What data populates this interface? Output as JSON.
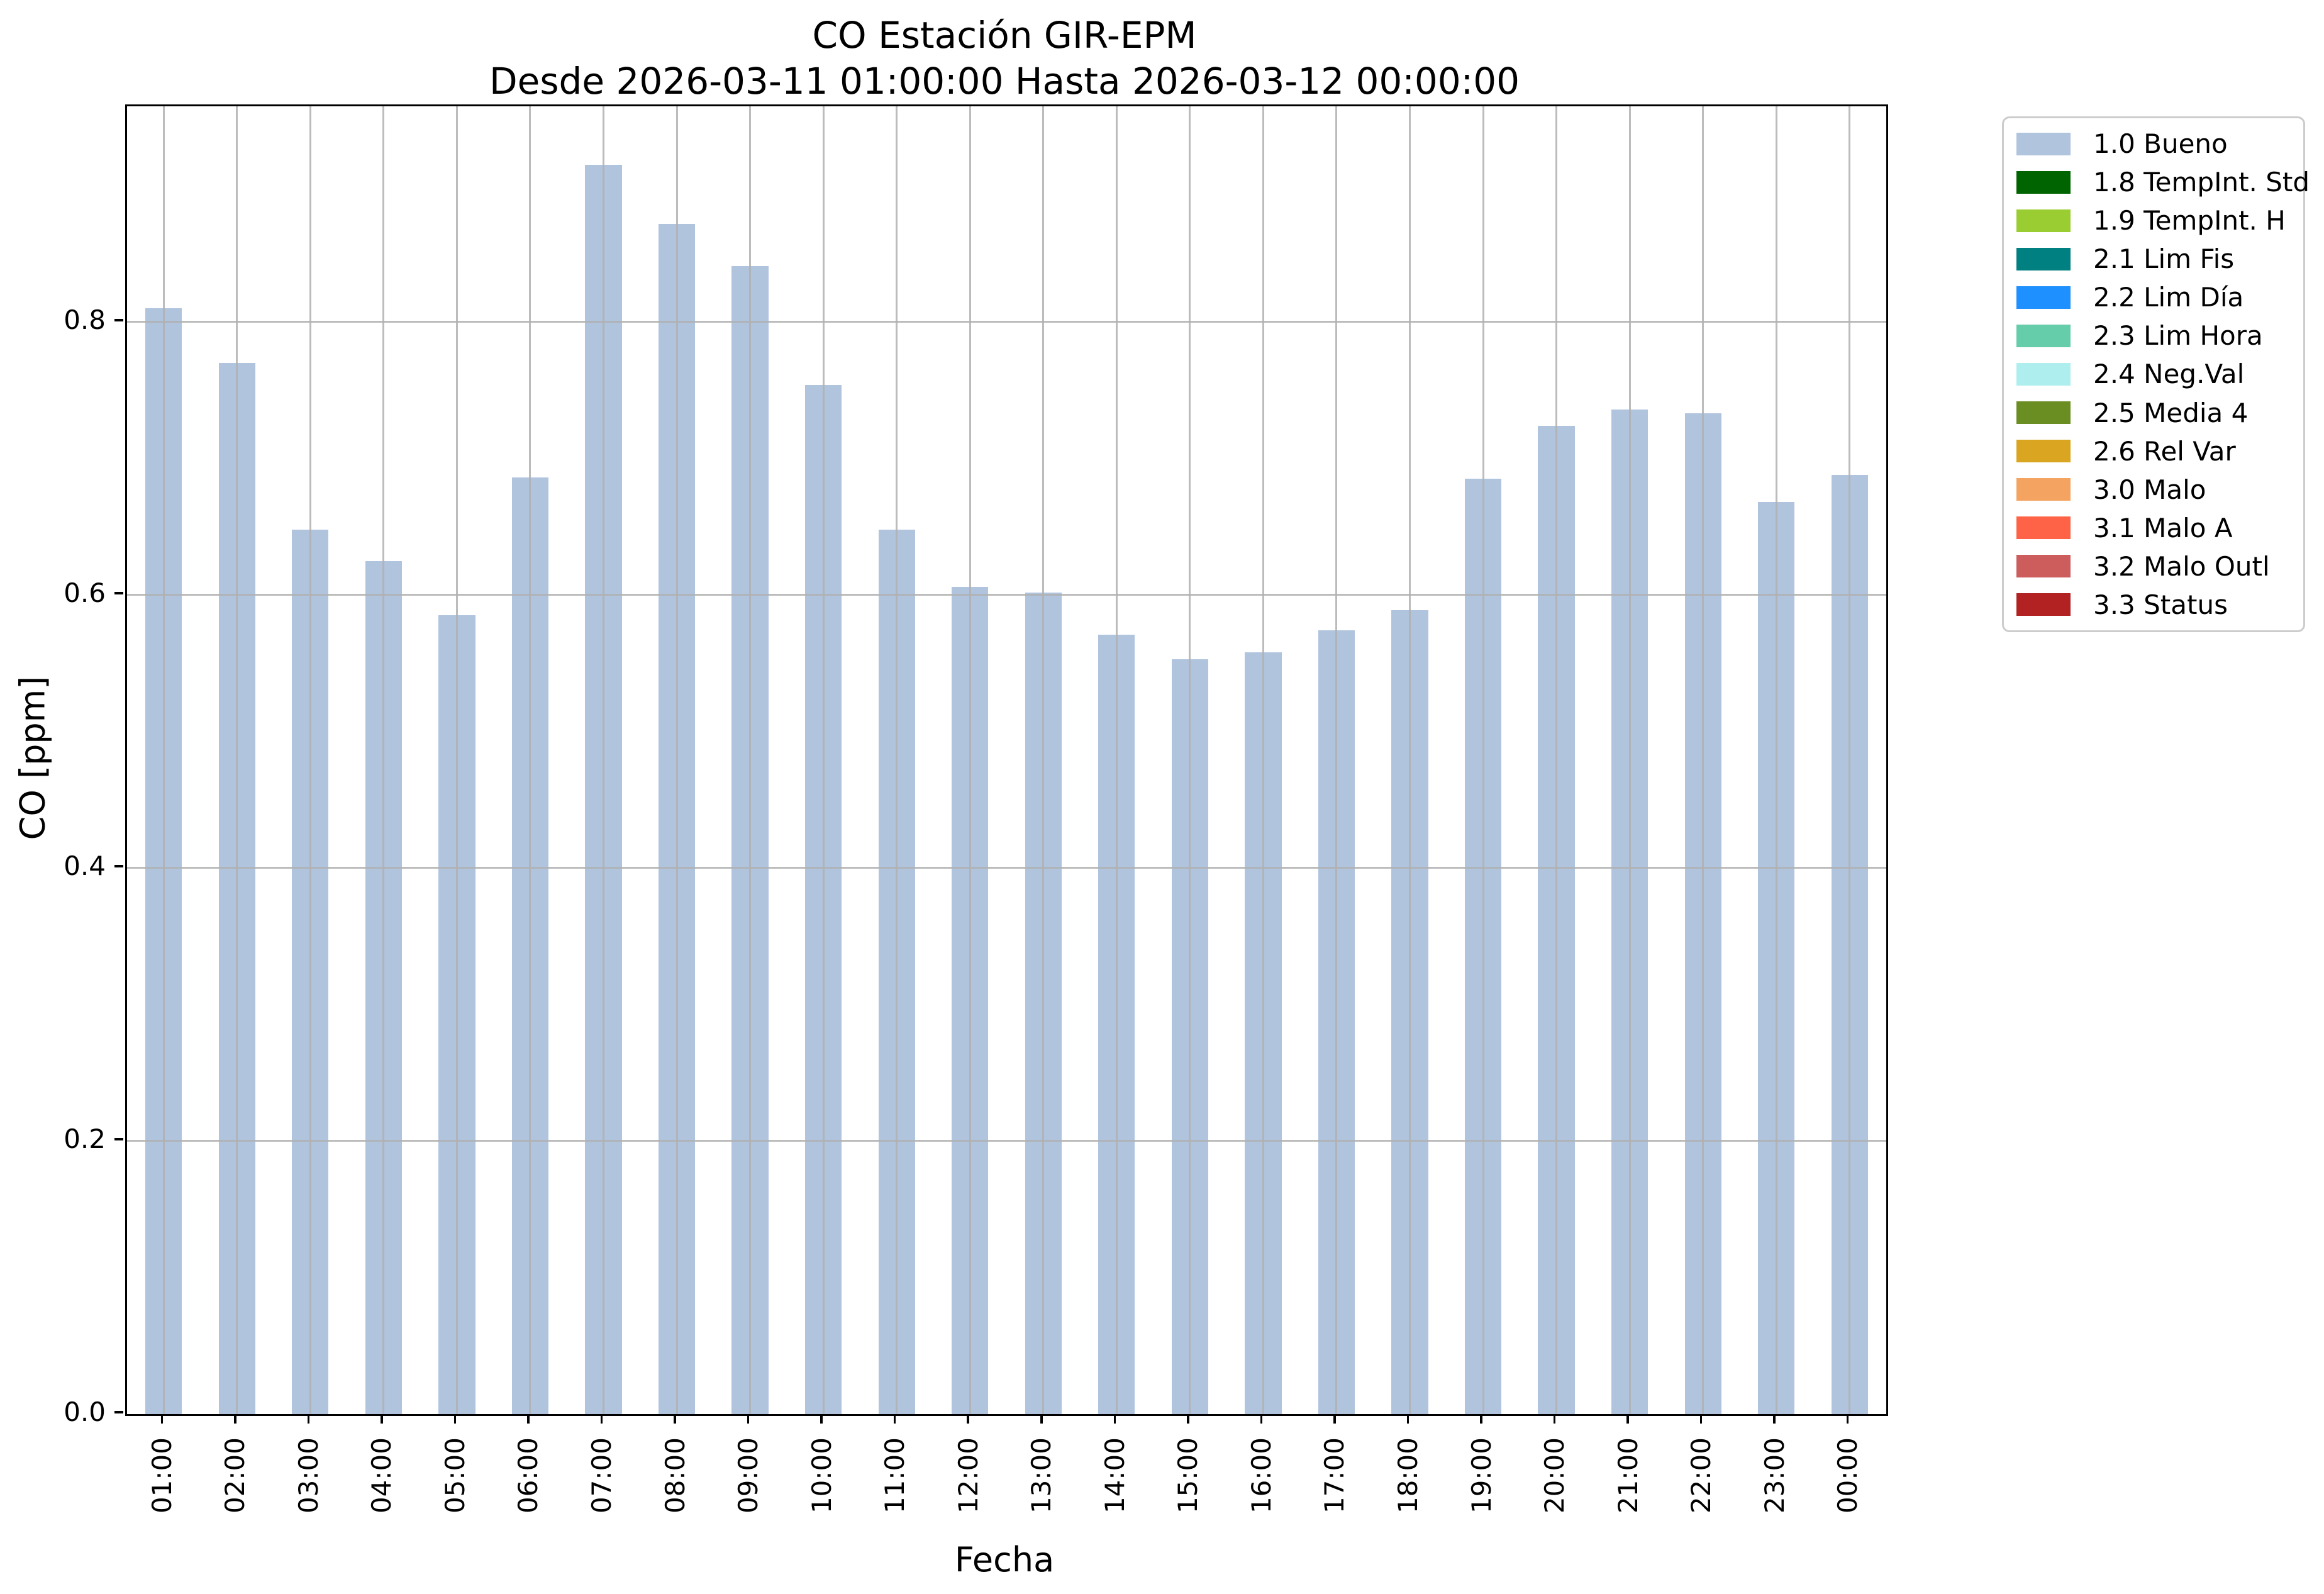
{
  "chart_data": {
    "type": "bar",
    "title": "CO Estación GIR-EPM",
    "subtitle": "Desde 2026-03-11 01:00:00 Hasta 2026-03-12 00:00:00",
    "xlabel": "Fecha",
    "ylabel": "CO [ppm]",
    "ylim": [
      0,
      0.958
    ],
    "yticks": [
      "0.0",
      "0.2",
      "0.4",
      "0.6",
      "0.8"
    ],
    "grid": true,
    "grid_color": "#b0b0b0",
    "bar_color": "#b0c4de",
    "legend_position": "outside upper right",
    "categories": [
      "01:00",
      "02:00",
      "03:00",
      "04:00",
      "05:00",
      "06:00",
      "07:00",
      "08:00",
      "09:00",
      "10:00",
      "11:00",
      "12:00",
      "13:00",
      "14:00",
      "15:00",
      "16:00",
      "17:00",
      "18:00",
      "19:00",
      "20:00",
      "21:00",
      "22:00",
      "23:00",
      "00:00"
    ],
    "series": [
      {
        "name": "1.0 Bueno",
        "color": "#b0c4de",
        "values": [
          0.81,
          0.77,
          0.648,
          0.625,
          0.585,
          0.686,
          0.915,
          0.872,
          0.841,
          0.754,
          0.648,
          0.606,
          0.602,
          0.571,
          0.553,
          0.558,
          0.574,
          0.589,
          0.685,
          0.724,
          0.736,
          0.733,
          0.668,
          0.688
        ]
      }
    ],
    "legend_items": [
      {
        "label": "1.0 Bueno",
        "color": "#b0c4de"
      },
      {
        "label": "1.8 TempInt. Std",
        "color": "#006400"
      },
      {
        "label": "1.9 TempInt. H",
        "color": "#9acd32"
      },
      {
        "label": "2.1 Lim Fis",
        "color": "#008080"
      },
      {
        "label": "2.2 Lim Día",
        "color": "#1e90ff"
      },
      {
        "label": "2.3 Lim Hora",
        "color": "#66cdaa"
      },
      {
        "label": "2.4 Neg.Val",
        "color": "#afeeee"
      },
      {
        "label": "2.5 Media 4",
        "color": "#6b8e23"
      },
      {
        "label": "2.6 Rel Var",
        "color": "#daa520"
      },
      {
        "label": "3.0 Malo",
        "color": "#f4a460"
      },
      {
        "label": "3.1 Malo A",
        "color": "#ff6347"
      },
      {
        "label": "3.2 Malo Outl",
        "color": "#cd5c5c"
      },
      {
        "label": "3.3 Status",
        "color": "#b22222"
      }
    ]
  }
}
